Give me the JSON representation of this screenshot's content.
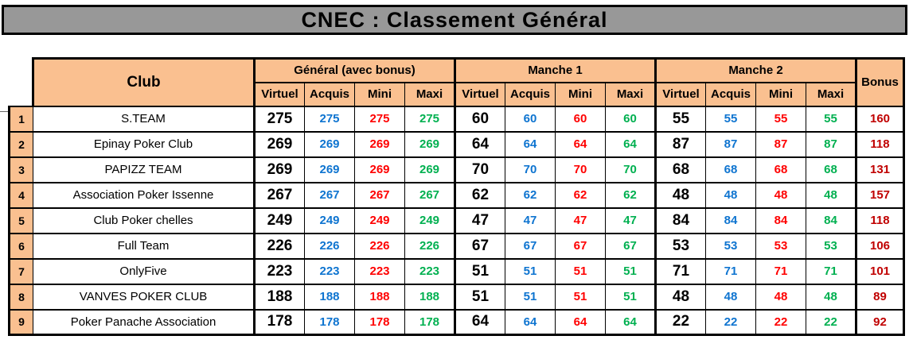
{
  "title": "CNEC : Classement Général",
  "table": {
    "club_header": "Club",
    "bonus_header": "Bonus",
    "groups": [
      {
        "label": "Général (avec bonus)",
        "sub": [
          "Virtuel",
          "Acquis",
          "Mini",
          "Maxi"
        ]
      },
      {
        "label": "Manche 1",
        "sub": [
          "Virtuel",
          "Acquis",
          "Mini",
          "Maxi"
        ]
      },
      {
        "label": "Manche 2",
        "sub": [
          "Virtuel",
          "Acquis",
          "Mini",
          "Maxi"
        ]
      }
    ],
    "rows": [
      {
        "rank": "1",
        "club": "S.TEAM",
        "general": [
          "275",
          "275",
          "275",
          "275"
        ],
        "manche1": [
          "60",
          "60",
          "60",
          "60"
        ],
        "manche2": [
          "55",
          "55",
          "55",
          "55"
        ],
        "bonus": "160"
      },
      {
        "rank": "2",
        "club": "Epinay Poker Club",
        "general": [
          "269",
          "269",
          "269",
          "269"
        ],
        "manche1": [
          "64",
          "64",
          "64",
          "64"
        ],
        "manche2": [
          "87",
          "87",
          "87",
          "87"
        ],
        "bonus": "118"
      },
      {
        "rank": "3",
        "club": "PAPIZZ TEAM",
        "general": [
          "269",
          "269",
          "269",
          "269"
        ],
        "manche1": [
          "70",
          "70",
          "70",
          "70"
        ],
        "manche2": [
          "68",
          "68",
          "68",
          "68"
        ],
        "bonus": "131"
      },
      {
        "rank": "4",
        "club": "Association Poker Issenne",
        "general": [
          "267",
          "267",
          "267",
          "267"
        ],
        "manche1": [
          "62",
          "62",
          "62",
          "62"
        ],
        "manche2": [
          "48",
          "48",
          "48",
          "48"
        ],
        "bonus": "157"
      },
      {
        "rank": "5",
        "club": "Club Poker chelles",
        "general": [
          "249",
          "249",
          "249",
          "249"
        ],
        "manche1": [
          "47",
          "47",
          "47",
          "47"
        ],
        "manche2": [
          "84",
          "84",
          "84",
          "84"
        ],
        "bonus": "118"
      },
      {
        "rank": "6",
        "club": "Full Team",
        "general": [
          "226",
          "226",
          "226",
          "226"
        ],
        "manche1": [
          "67",
          "67",
          "67",
          "67"
        ],
        "manche2": [
          "53",
          "53",
          "53",
          "53"
        ],
        "bonus": "106"
      },
      {
        "rank": "7",
        "club": "OnlyFive",
        "general": [
          "223",
          "223",
          "223",
          "223"
        ],
        "manche1": [
          "51",
          "51",
          "51",
          "51"
        ],
        "manche2": [
          "71",
          "71",
          "71",
          "71"
        ],
        "bonus": "101"
      },
      {
        "rank": "8",
        "club": "VANVES POKER CLUB",
        "general": [
          "188",
          "188",
          "188",
          "188"
        ],
        "manche1": [
          "51",
          "51",
          "51",
          "51"
        ],
        "manche2": [
          "48",
          "48",
          "48",
          "48"
        ],
        "bonus": "89"
      },
      {
        "rank": "9",
        "club": "Poker Panache Association",
        "general": [
          "178",
          "178",
          "178",
          "178"
        ],
        "manche1": [
          "64",
          "64",
          "64",
          "64"
        ],
        "manche2": [
          "22",
          "22",
          "22",
          "22"
        ],
        "bonus": "92"
      }
    ]
  },
  "colors": {
    "header_fill": "#FAC090",
    "title_fill": "#989898",
    "border": "#000000",
    "virtuel": "#000000",
    "acquis": "#0E74D0",
    "mini": "#FF0000",
    "maxi": "#00B050",
    "bonus": "#C00000"
  }
}
